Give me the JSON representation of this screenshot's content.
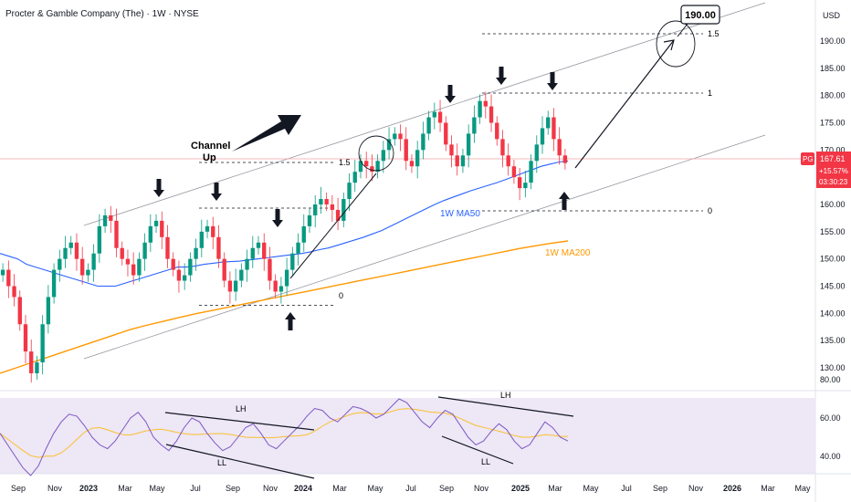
{
  "title": "Procter & Gamble Company (The) · 1W · NYSE",
  "currency": "USD",
  "price_tag": {
    "ticker": "PG",
    "price": "167.61",
    "change": "+15.57%",
    "countdown": "03:30:23",
    "color": "#f23645"
  },
  "target_box": "190.00",
  "channel_label": [
    "Channel",
    "Up"
  ],
  "ma50_label": "1W MA50",
  "ma200_label": "1W MA200",
  "fib_labels": {
    "a_1_5": "1.5",
    "a_0": "0",
    "b_1_5": "1.5",
    "b_1": "1",
    "b_0": "0"
  },
  "rsi_labels": {
    "lh1": "LH",
    "ll1": "LL",
    "lh2": "LH",
    "ll2": "LL"
  },
  "colors": {
    "up": "#089981",
    "down": "#f23645",
    "ma50": "#2962ff",
    "ma200": "#ff9800",
    "rsi": "#7e57c2",
    "rsi_ma": "#fbc02d",
    "rsi_bg": "#ede7f6"
  },
  "chart_data": {
    "type": "candlestick",
    "y_axis_price": {
      "ticks": [
        "190.00",
        "185.00",
        "180.00",
        "175.00",
        "170.00",
        "165.00",
        "160.00",
        "155.00",
        "150.00",
        "145.00",
        "140.00",
        "135.00",
        "130.00",
        "80.00"
      ],
      "range": [
        127,
        196
      ]
    },
    "y_axis_rsi": {
      "ticks": [
        "60.00",
        "40.00"
      ]
    },
    "x_axis": {
      "ticks": [
        "Sep",
        "Nov",
        "2023",
        "Mar",
        "May",
        "Jul",
        "Sep",
        "Nov",
        "2024",
        "Mar",
        "May",
        "Jul",
        "Sep",
        "Nov",
        "2025",
        "Mar",
        "May",
        "Jul",
        "Sep",
        "Nov",
        "2026",
        "Mar",
        "May"
      ]
    },
    "last_price": 167.61,
    "target": 190.0,
    "fib_a": {
      "level_0": 141.5,
      "level_1_5": 166.5
    },
    "fib_b": {
      "level_0": 157.5,
      "level_1": 180.0,
      "level_1_5": 193.7
    },
    "close_path": [
      148,
      145,
      143,
      138,
      133,
      129,
      131,
      138,
      143,
      148,
      150,
      152,
      153,
      150,
      147,
      148,
      151,
      156,
      158,
      157,
      152,
      150,
      149,
      147,
      150,
      153,
      156,
      157,
      154,
      150,
      148,
      146,
      147,
      150,
      152,
      155,
      156,
      154,
      150,
      146,
      144,
      146,
      148,
      150,
      152,
      153,
      150,
      146,
      144,
      145,
      148,
      151,
      153,
      156,
      158,
      160,
      161,
      160,
      159,
      157,
      161,
      164,
      166,
      168,
      167,
      166,
      168,
      170,
      172,
      173,
      172,
      168,
      167,
      170,
      173,
      176,
      177,
      175,
      171,
      169,
      167,
      169,
      173,
      176,
      179,
      178,
      175,
      172,
      169,
      167,
      165,
      163,
      164,
      168,
      171,
      174,
      176,
      172,
      169,
      167.6
    ],
    "ma50_path": [
      151,
      150.5,
      150,
      149,
      148.5,
      148,
      147.5,
      147,
      146.5,
      146,
      145.5,
      145,
      145,
      145,
      145.5,
      146,
      146.5,
      147,
      147.5,
      148,
      148.5,
      148.5,
      148.7,
      149,
      149.2,
      149.4,
      149.5,
      149.6,
      149.8,
      150,
      150.2,
      150.4,
      150.6,
      150.8,
      151,
      151.3,
      151.7,
      152,
      152.5,
      153,
      153.5,
      154,
      154.6,
      155.2,
      156,
      156.8,
      157.6,
      158.4,
      159.2,
      160,
      160.7,
      161.3,
      161.9,
      162.5,
      163,
      163.5,
      164,
      164.6,
      165.2,
      165.8,
      166.4,
      167,
      167.4,
      167.8,
      168
    ],
    "ma200_path": [
      129,
      130,
      131,
      132,
      133,
      134,
      135,
      136,
      137,
      137.8,
      138.5,
      139.2,
      139.9,
      140.5,
      141.1,
      141.7,
      142.3,
      142.9,
      143.5,
      144.1,
      144.7,
      145.3,
      145.9,
      146.5,
      147.1,
      147.7,
      148.3,
      148.9,
      149.5,
      150.1,
      150.7,
      151.3,
      151.9,
      152.4,
      152.9,
      153.3
    ],
    "rsi_path": [
      52,
      46,
      40,
      34,
      30,
      35,
      44,
      52,
      58,
      62,
      61,
      56,
      50,
      46,
      44,
      48,
      54,
      60,
      63,
      58,
      50,
      46,
      43,
      48,
      55,
      60,
      58,
      52,
      47,
      43,
      45,
      50,
      55,
      57,
      52,
      46,
      44,
      48,
      52,
      56,
      61,
      65,
      64,
      60,
      58,
      62,
      66,
      65,
      63,
      60,
      62,
      66,
      70,
      68,
      63,
      58,
      55,
      60,
      64,
      62,
      56,
      50,
      46,
      48,
      53,
      57,
      54,
      48,
      44,
      46,
      52,
      58,
      55,
      50,
      48
    ]
  }
}
